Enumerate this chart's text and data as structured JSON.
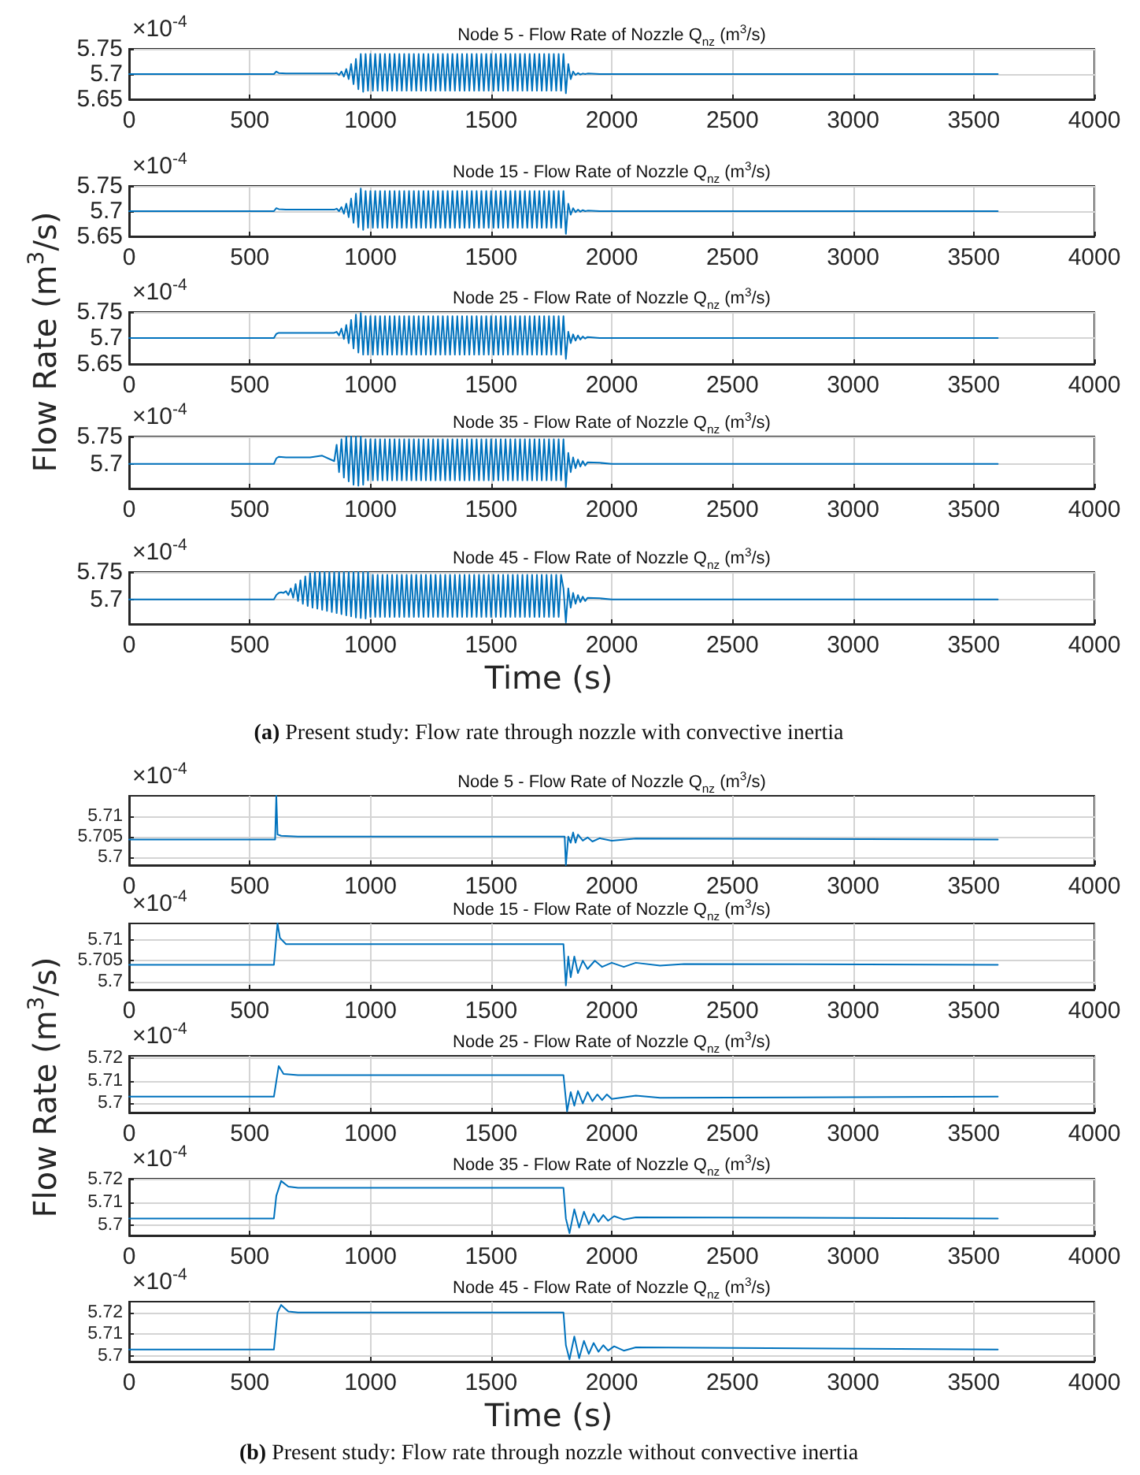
{
  "chart_data": [
    {
      "type": "line",
      "title": "Node 5 - Flow Rate of Nozzle Q$_{nz}$ (m$^{3}$/s)",
      "annotations": [
        "×10$^{-4}$"
      ],
      "color": "#0072bd",
      "grid": true,
      "xlim": [
        0,
        4000
      ],
      "xticks": [
        0,
        500,
        1000,
        1500,
        2000,
        2500,
        3000,
        3500,
        4000
      ],
      "ylim": [
        5.65,
        5.75
      ],
      "yticks": [
        5.65,
        5.7,
        5.75
      ],
      "x": [
        0,
        590,
        600,
        610,
        620,
        650,
        700,
        750,
        800,
        850,
        860,
        870,
        880,
        890,
        900,
        910,
        920,
        930,
        940,
        950,
        960,
        970,
        980,
        990,
        1000,
        1010,
        1020,
        1030,
        1040,
        1050,
        1060,
        1070,
        1080,
        1090,
        1100,
        1110,
        1120,
        1130,
        1140,
        1150,
        1160,
        1170,
        1180,
        1190,
        1200,
        1210,
        1220,
        1230,
        1240,
        1250,
        1260,
        1270,
        1280,
        1290,
        1300,
        1310,
        1320,
        1330,
        1340,
        1350,
        1360,
        1370,
        1380,
        1390,
        1400,
        1410,
        1420,
        1430,
        1440,
        1450,
        1460,
        1470,
        1480,
        1490,
        1500,
        1510,
        1520,
        1530,
        1540,
        1550,
        1560,
        1570,
        1580,
        1590,
        1600,
        1610,
        1620,
        1630,
        1640,
        1650,
        1660,
        1670,
        1680,
        1690,
        1700,
        1710,
        1720,
        1730,
        1740,
        1750,
        1760,
        1770,
        1780,
        1790,
        1800,
        1810,
        1820,
        1830,
        1840,
        1850,
        1860,
        1870,
        1880,
        1890,
        1900,
        1950,
        2000,
        2100,
        2200,
        2500,
        3000,
        3600
      ],
      "values": [
        5.7,
        5.7,
        5.7,
        5.705,
        5.702,
        5.701,
        5.701,
        5.701,
        5.701,
        5.701,
        5.702,
        5.698,
        5.705,
        5.695,
        5.71,
        5.69,
        5.72,
        5.68,
        5.73,
        5.67,
        5.74,
        5.665,
        5.74,
        5.667,
        5.74,
        5.667,
        5.74,
        5.667,
        5.74,
        5.667,
        5.74,
        5.667,
        5.74,
        5.667,
        5.74,
        5.667,
        5.74,
        5.667,
        5.74,
        5.667,
        5.74,
        5.667,
        5.74,
        5.667,
        5.74,
        5.667,
        5.74,
        5.667,
        5.74,
        5.667,
        5.74,
        5.667,
        5.74,
        5.667,
        5.74,
        5.667,
        5.74,
        5.667,
        5.74,
        5.667,
        5.74,
        5.667,
        5.74,
        5.667,
        5.74,
        5.667,
        5.74,
        5.667,
        5.74,
        5.667,
        5.74,
        5.667,
        5.74,
        5.667,
        5.74,
        5.667,
        5.74,
        5.667,
        5.74,
        5.667,
        5.74,
        5.667,
        5.74,
        5.667,
        5.74,
        5.667,
        5.74,
        5.667,
        5.74,
        5.667,
        5.74,
        5.667,
        5.74,
        5.667,
        5.74,
        5.667,
        5.74,
        5.667,
        5.74,
        5.667,
        5.74,
        5.667,
        5.74,
        5.667,
        5.74,
        5.662,
        5.72,
        5.69,
        5.705,
        5.698,
        5.702,
        5.699,
        5.701,
        5.7,
        5.701,
        5.7,
        5.7,
        5.7,
        5.7,
        5.7,
        5.7,
        5.7
      ]
    },
    {
      "type": "line",
      "title": "Node 15 - Flow Rate of Nozzle Q$_{nz}$ (m$^{3}$/s)",
      "annotations": [
        "×10$^{-4}$"
      ],
      "color": "#0072bd",
      "grid": true,
      "xlim": [
        0,
        4000
      ],
      "xticks": [
        0,
        500,
        1000,
        1500,
        2000,
        2500,
        3000,
        3500,
        4000
      ],
      "ylim": [
        5.65,
        5.75
      ],
      "yticks": [
        5.65,
        5.7,
        5.75
      ],
      "x": [
        0,
        590,
        600,
        610,
        620,
        650,
        700,
        750,
        800,
        850,
        860,
        870,
        880,
        890,
        900,
        910,
        920,
        930,
        940,
        950,
        960,
        970,
        980,
        990,
        1000,
        1010,
        1020,
        1030,
        1040,
        1050,
        1060,
        1070,
        1080,
        1090,
        1100,
        1110,
        1120,
        1130,
        1140,
        1150,
        1160,
        1170,
        1180,
        1190,
        1200,
        1210,
        1220,
        1230,
        1240,
        1250,
        1260,
        1270,
        1280,
        1290,
        1300,
        1310,
        1320,
        1330,
        1340,
        1350,
        1360,
        1370,
        1380,
        1390,
        1400,
        1410,
        1420,
        1430,
        1440,
        1450,
        1460,
        1470,
        1480,
        1490,
        1500,
        1510,
        1520,
        1530,
        1540,
        1550,
        1560,
        1570,
        1580,
        1590,
        1600,
        1610,
        1620,
        1630,
        1640,
        1650,
        1660,
        1670,
        1680,
        1690,
        1700,
        1710,
        1720,
        1730,
        1740,
        1750,
        1760,
        1770,
        1780,
        1790,
        1800,
        1810,
        1820,
        1830,
        1840,
        1850,
        1860,
        1870,
        1880,
        1890,
        1900,
        1950,
        2000,
        2100,
        2200,
        2500,
        3000,
        3600
      ],
      "values": [
        5.7,
        5.7,
        5.7,
        5.706,
        5.704,
        5.703,
        5.703,
        5.703,
        5.703,
        5.703,
        5.705,
        5.7,
        5.708,
        5.695,
        5.715,
        5.688,
        5.725,
        5.677,
        5.735,
        5.668,
        5.745,
        5.663,
        5.74,
        5.667,
        5.74,
        5.667,
        5.74,
        5.667,
        5.74,
        5.667,
        5.74,
        5.667,
        5.74,
        5.667,
        5.74,
        5.667,
        5.74,
        5.667,
        5.74,
        5.667,
        5.74,
        5.667,
        5.74,
        5.667,
        5.74,
        5.667,
        5.74,
        5.667,
        5.74,
        5.667,
        5.74,
        5.667,
        5.74,
        5.667,
        5.74,
        5.667,
        5.74,
        5.667,
        5.74,
        5.667,
        5.74,
        5.667,
        5.74,
        5.667,
        5.74,
        5.667,
        5.74,
        5.667,
        5.74,
        5.667,
        5.74,
        5.667,
        5.74,
        5.667,
        5.74,
        5.667,
        5.74,
        5.667,
        5.74,
        5.667,
        5.74,
        5.667,
        5.74,
        5.667,
        5.74,
        5.667,
        5.74,
        5.667,
        5.74,
        5.667,
        5.74,
        5.667,
        5.74,
        5.667,
        5.74,
        5.667,
        5.74,
        5.667,
        5.74,
        5.667,
        5.74,
        5.667,
        5.74,
        5.667,
        5.74,
        5.655,
        5.715,
        5.693,
        5.706,
        5.698,
        5.703,
        5.699,
        5.702,
        5.7,
        5.701,
        5.7,
        5.7,
        5.7,
        5.7,
        5.7,
        5.7,
        5.7
      ]
    },
    {
      "type": "line",
      "title": "Node 25 - Flow Rate of Nozzle Q$_{nz}$ (m$^{3}$/s)",
      "ylabel": "Flow Rate (m$^{3}$/s)",
      "annotations": [
        "×10$^{-4}$"
      ],
      "color": "#0072bd",
      "grid": true,
      "xlim": [
        0,
        4000
      ],
      "xticks": [
        0,
        500,
        1000,
        1500,
        2000,
        2500,
        3000,
        3500,
        4000
      ],
      "ylim": [
        5.65,
        5.75
      ],
      "yticks": [
        5.65,
        5.7,
        5.75
      ],
      "x": [
        0,
        590,
        600,
        610,
        620,
        650,
        700,
        750,
        800,
        850,
        860,
        870,
        880,
        890,
        900,
        910,
        920,
        930,
        940,
        950,
        960,
        970,
        980,
        990,
        1000,
        1010,
        1020,
        1030,
        1040,
        1050,
        1060,
        1070,
        1080,
        1090,
        1100,
        1110,
        1120,
        1130,
        1140,
        1150,
        1160,
        1170,
        1180,
        1190,
        1200,
        1210,
        1220,
        1230,
        1240,
        1250,
        1260,
        1270,
        1280,
        1290,
        1300,
        1310,
        1320,
        1330,
        1340,
        1350,
        1360,
        1370,
        1380,
        1390,
        1400,
        1410,
        1420,
        1430,
        1440,
        1450,
        1460,
        1470,
        1480,
        1490,
        1500,
        1510,
        1520,
        1530,
        1540,
        1550,
        1560,
        1570,
        1580,
        1590,
        1600,
        1610,
        1620,
        1630,
        1640,
        1650,
        1660,
        1670,
        1680,
        1690,
        1700,
        1710,
        1720,
        1730,
        1740,
        1750,
        1760,
        1770,
        1780,
        1790,
        1800,
        1810,
        1820,
        1830,
        1840,
        1850,
        1860,
        1870,
        1880,
        1890,
        1900,
        1950,
        2000,
        2100,
        2200,
        2500,
        3000,
        3600
      ],
      "values": [
        5.7,
        5.7,
        5.7,
        5.708,
        5.71,
        5.71,
        5.71,
        5.71,
        5.71,
        5.71,
        5.712,
        5.705,
        5.718,
        5.698,
        5.725,
        5.69,
        5.735,
        5.68,
        5.745,
        5.672,
        5.748,
        5.668,
        5.742,
        5.668,
        5.742,
        5.668,
        5.742,
        5.668,
        5.742,
        5.668,
        5.742,
        5.668,
        5.742,
        5.668,
        5.742,
        5.668,
        5.742,
        5.668,
        5.742,
        5.668,
        5.742,
        5.668,
        5.742,
        5.668,
        5.742,
        5.668,
        5.742,
        5.668,
        5.742,
        5.668,
        5.742,
        5.668,
        5.742,
        5.668,
        5.742,
        5.668,
        5.742,
        5.668,
        5.742,
        5.668,
        5.742,
        5.668,
        5.742,
        5.668,
        5.742,
        5.668,
        5.742,
        5.668,
        5.742,
        5.668,
        5.742,
        5.668,
        5.742,
        5.668,
        5.742,
        5.668,
        5.742,
        5.668,
        5.742,
        5.668,
        5.742,
        5.668,
        5.742,
        5.668,
        5.742,
        5.668,
        5.742,
        5.668,
        5.742,
        5.668,
        5.742,
        5.668,
        5.742,
        5.668,
        5.742,
        5.668,
        5.742,
        5.668,
        5.742,
        5.668,
        5.742,
        5.668,
        5.742,
        5.668,
        5.742,
        5.66,
        5.712,
        5.69,
        5.707,
        5.695,
        5.705,
        5.697,
        5.703,
        5.699,
        5.702,
        5.7,
        5.7,
        5.7,
        5.7,
        5.7,
        5.7,
        5.7
      ]
    },
    {
      "type": "line",
      "title": "Node 35 - Flow Rate of Nozzle Q$_{nz}$ (m$^{3}$/s)",
      "annotations": [
        "×10$^{-4}$"
      ],
      "color": "#0072bd",
      "grid": true,
      "xlim": [
        0,
        4000
      ],
      "xticks": [
        0,
        500,
        1000,
        1500,
        2000,
        2500,
        3000,
        3500,
        4000
      ],
      "ylim": [
        5.655,
        5.75
      ],
      "yticks": [
        5.7,
        5.75
      ],
      "x": [
        0,
        590,
        600,
        610,
        620,
        650,
        700,
        750,
        800,
        850,
        860,
        870,
        880,
        890,
        900,
        910,
        920,
        930,
        940,
        950,
        960,
        970,
        980,
        990,
        1000,
        1010,
        1020,
        1030,
        1040,
        1050,
        1060,
        1070,
        1080,
        1090,
        1100,
        1110,
        1120,
        1130,
        1140,
        1150,
        1160,
        1170,
        1180,
        1190,
        1200,
        1210,
        1220,
        1230,
        1240,
        1250,
        1260,
        1270,
        1280,
        1290,
        1300,
        1310,
        1320,
        1330,
        1340,
        1350,
        1360,
        1370,
        1380,
        1390,
        1400,
        1410,
        1420,
        1430,
        1440,
        1450,
        1460,
        1470,
        1480,
        1490,
        1500,
        1510,
        1520,
        1530,
        1540,
        1550,
        1560,
        1570,
        1580,
        1590,
        1600,
        1610,
        1620,
        1630,
        1640,
        1650,
        1660,
        1670,
        1680,
        1690,
        1700,
        1710,
        1720,
        1730,
        1740,
        1750,
        1760,
        1770,
        1780,
        1790,
        1800,
        1810,
        1820,
        1830,
        1840,
        1850,
        1860,
        1870,
        1880,
        1890,
        1900,
        1950,
        2000,
        2100,
        2200,
        2500,
        3000,
        3600
      ],
      "values": [
        5.7,
        5.7,
        5.7,
        5.71,
        5.713,
        5.712,
        5.712,
        5.712,
        5.715,
        5.705,
        5.735,
        5.685,
        5.745,
        5.675,
        5.75,
        5.668,
        5.75,
        5.662,
        5.75,
        5.66,
        5.75,
        5.662,
        5.745,
        5.67,
        5.745,
        5.67,
        5.745,
        5.67,
        5.745,
        5.67,
        5.745,
        5.67,
        5.745,
        5.67,
        5.745,
        5.67,
        5.745,
        5.67,
        5.745,
        5.67,
        5.745,
        5.67,
        5.745,
        5.67,
        5.745,
        5.67,
        5.745,
        5.67,
        5.745,
        5.67,
        5.745,
        5.67,
        5.745,
        5.67,
        5.745,
        5.67,
        5.745,
        5.67,
        5.745,
        5.67,
        5.745,
        5.67,
        5.745,
        5.67,
        5.745,
        5.67,
        5.745,
        5.67,
        5.745,
        5.67,
        5.745,
        5.67,
        5.745,
        5.67,
        5.745,
        5.67,
        5.745,
        5.67,
        5.745,
        5.67,
        5.745,
        5.67,
        5.745,
        5.67,
        5.745,
        5.67,
        5.745,
        5.67,
        5.745,
        5.67,
        5.745,
        5.67,
        5.745,
        5.67,
        5.745,
        5.67,
        5.745,
        5.67,
        5.745,
        5.67,
        5.745,
        5.67,
        5.745,
        5.67,
        5.745,
        5.658,
        5.72,
        5.685,
        5.712,
        5.692,
        5.708,
        5.695,
        5.705,
        5.697,
        5.703,
        5.702,
        5.7,
        5.7,
        5.7,
        5.7,
        5.7,
        5.7
      ]
    },
    {
      "type": "line",
      "title": "Node 45 - Flow Rate of Nozzle Q$_{nz}$ (m$^{3}$/s)",
      "xlabel": "Time (s)",
      "annotations": [
        "×10$^{-4}$",
        "(a) Present study: Flow rate through nozzle with convective inertia"
      ],
      "color": "#0072bd",
      "grid": true,
      "xlim": [
        0,
        4000
      ],
      "xticks": [
        0,
        500,
        1000,
        1500,
        2000,
        2500,
        3000,
        3500,
        4000
      ],
      "ylim": [
        5.655,
        5.75
      ],
      "yticks": [
        5.7,
        5.75
      ],
      "x": [
        0,
        590,
        600,
        610,
        620,
        630,
        640,
        650,
        660,
        670,
        680,
        690,
        700,
        710,
        720,
        730,
        740,
        750,
        760,
        770,
        780,
        790,
        800,
        810,
        820,
        830,
        840,
        850,
        860,
        870,
        880,
        890,
        900,
        910,
        920,
        930,
        940,
        950,
        960,
        970,
        980,
        990,
        1000,
        1010,
        1020,
        1030,
        1040,
        1050,
        1060,
        1070,
        1080,
        1090,
        1100,
        1110,
        1120,
        1130,
        1140,
        1150,
        1160,
        1170,
        1180,
        1190,
        1200,
        1210,
        1220,
        1230,
        1240,
        1250,
        1260,
        1270,
        1280,
        1290,
        1300,
        1310,
        1320,
        1330,
        1340,
        1350,
        1360,
        1370,
        1380,
        1390,
        1400,
        1410,
        1420,
        1430,
        1440,
        1450,
        1460,
        1470,
        1480,
        1490,
        1500,
        1510,
        1520,
        1530,
        1540,
        1550,
        1560,
        1570,
        1580,
        1590,
        1600,
        1610,
        1620,
        1630,
        1640,
        1650,
        1660,
        1670,
        1680,
        1690,
        1700,
        1710,
        1720,
        1730,
        1740,
        1750,
        1760,
        1770,
        1780,
        1790,
        1800,
        1810,
        1820,
        1830,
        1840,
        1850,
        1860,
        1870,
        1880,
        1890,
        1900,
        1950,
        2000,
        2100,
        2200,
        2500,
        3000,
        3600
      ],
      "values": [
        5.7,
        5.7,
        5.7,
        5.708,
        5.712,
        5.713,
        5.712,
        5.715,
        5.708,
        5.72,
        5.703,
        5.728,
        5.697,
        5.735,
        5.692,
        5.742,
        5.688,
        5.748,
        5.685,
        5.75,
        5.683,
        5.75,
        5.681,
        5.75,
        5.679,
        5.75,
        5.677,
        5.75,
        5.675,
        5.75,
        5.673,
        5.75,
        5.671,
        5.75,
        5.669,
        5.75,
        5.667,
        5.75,
        5.666,
        5.75,
        5.665,
        5.75,
        5.668,
        5.745,
        5.668,
        5.745,
        5.668,
        5.745,
        5.668,
        5.745,
        5.668,
        5.745,
        5.668,
        5.745,
        5.668,
        5.745,
        5.668,
        5.745,
        5.668,
        5.745,
        5.668,
        5.745,
        5.668,
        5.745,
        5.668,
        5.745,
        5.668,
        5.745,
        5.668,
        5.745,
        5.668,
        5.745,
        5.668,
        5.745,
        5.668,
        5.745,
        5.668,
        5.745,
        5.668,
        5.745,
        5.668,
        5.745,
        5.668,
        5.745,
        5.668,
        5.745,
        5.668,
        5.745,
        5.668,
        5.745,
        5.668,
        5.745,
        5.668,
        5.745,
        5.668,
        5.745,
        5.668,
        5.745,
        5.668,
        5.745,
        5.668,
        5.745,
        5.668,
        5.745,
        5.668,
        5.745,
        5.668,
        5.745,
        5.668,
        5.745,
        5.668,
        5.745,
        5.668,
        5.745,
        5.668,
        5.745,
        5.668,
        5.745,
        5.668,
        5.745,
        5.668,
        5.745,
        5.72,
        5.658,
        5.72,
        5.685,
        5.712,
        5.692,
        5.708,
        5.695,
        5.705,
        5.697,
        5.703,
        5.702,
        5.7,
        5.7,
        5.7,
        5.7,
        5.7,
        5.7
      ]
    },
    {
      "type": "line",
      "title": "Node 5 - Flow Rate of Nozzle Q$_{nz}$ (m$^{3}$/s)",
      "annotations": [
        "×10$^{-4}$"
      ],
      "color": "#0072bd",
      "grid": true,
      "xlim": [
        0,
        4000
      ],
      "xticks": [
        0,
        500,
        1000,
        1500,
        2000,
        2500,
        3000,
        3500,
        4000
      ],
      "ylim": [
        5.698,
        5.715
      ],
      "yticks": [
        5.7,
        5.705,
        5.71
      ],
      "x": [
        0,
        600,
        605,
        610,
        615,
        630,
        700,
        1800,
        1805,
        1810,
        1820,
        1830,
        1840,
        1850,
        1860,
        1880,
        1900,
        1920,
        1950,
        2000,
        2100,
        3600
      ],
      "values": [
        5.7043,
        5.7043,
        5.7043,
        5.715,
        5.7055,
        5.7052,
        5.705,
        5.705,
        5.705,
        5.698,
        5.705,
        5.7035,
        5.706,
        5.7035,
        5.7055,
        5.704,
        5.7048,
        5.7038,
        5.7046,
        5.704,
        5.7045,
        5.7043
      ]
    },
    {
      "type": "line",
      "title": "Node 15 - Flow Rate of Nozzle Q$_{nz}$ (m$^{3}$/s)",
      "annotations": [
        "×10$^{-4}$"
      ],
      "color": "#0072bd",
      "grid": true,
      "xlim": [
        0,
        4000
      ],
      "xticks": [
        0,
        500,
        1000,
        1500,
        2000,
        2500,
        3000,
        3500,
        4000
      ],
      "ylim": [
        5.698,
        5.714
      ],
      "yticks": [
        5.7,
        5.705,
        5.71
      ],
      "x": [
        0,
        600,
        615,
        625,
        650,
        700,
        1800,
        1810,
        1820,
        1830,
        1845,
        1860,
        1880,
        1900,
        1930,
        1960,
        2000,
        2050,
        2100,
        2200,
        2300,
        3600
      ],
      "values": [
        5.704,
        5.704,
        5.714,
        5.7105,
        5.709,
        5.709,
        5.709,
        5.699,
        5.706,
        5.701,
        5.706,
        5.702,
        5.705,
        5.703,
        5.705,
        5.7035,
        5.7045,
        5.7035,
        5.7045,
        5.7038,
        5.7042,
        5.704
      ]
    },
    {
      "type": "line",
      "title": "Node 25 - Flow Rate of Nozzle Q$_{nz}$ (m$^{3}$/s)",
      "ylabel": "Flow Rate (m$^{3}$/s)",
      "annotations": [
        "×10$^{-4}$"
      ],
      "color": "#0072bd",
      "grid": true,
      "xlim": [
        0,
        4000
      ],
      "xticks": [
        0,
        500,
        1000,
        1500,
        2000,
        2500,
        3000,
        3500,
        4000
      ],
      "ylim": [
        5.696,
        5.721
      ],
      "yticks": [
        5.7,
        5.71,
        5.72
      ],
      "x": [
        0,
        600,
        620,
        640,
        700,
        1800,
        1815,
        1830,
        1845,
        1860,
        1880,
        1900,
        1920,
        1940,
        1960,
        1980,
        2000,
        2100,
        2200,
        3600
      ],
      "values": [
        5.703,
        5.703,
        5.7165,
        5.713,
        5.7125,
        5.7125,
        5.6965,
        5.705,
        5.699,
        5.7055,
        5.7,
        5.705,
        5.701,
        5.704,
        5.7015,
        5.704,
        5.702,
        5.7035,
        5.7025,
        5.703
      ]
    },
    {
      "type": "line",
      "title": "Node 35 - Flow Rate of Nozzle Q$_{nz}$ (m$^{3}$/s)",
      "annotations": [
        "×10$^{-4}$"
      ],
      "color": "#0072bd",
      "grid": true,
      "xlim": [
        0,
        4000
      ],
      "xticks": [
        0,
        500,
        1000,
        1500,
        2000,
        2500,
        3000,
        3500,
        4000
      ],
      "ylim": [
        5.6955,
        5.7205
      ],
      "yticks": [
        5.7,
        5.71,
        5.72
      ],
      "x": [
        0,
        600,
        610,
        630,
        660,
        700,
        1800,
        1810,
        1825,
        1845,
        1865,
        1885,
        1905,
        1925,
        1945,
        1965,
        1985,
        2010,
        2050,
        2100,
        3600
      ],
      "values": [
        5.703,
        5.703,
        5.713,
        5.7195,
        5.717,
        5.7165,
        5.7165,
        5.703,
        5.6965,
        5.707,
        5.699,
        5.706,
        5.7005,
        5.705,
        5.7015,
        5.7045,
        5.702,
        5.704,
        5.7025,
        5.7035,
        5.703
      ]
    },
    {
      "type": "line",
      "title": "Node 45 - Flow Rate of Nozzle Q$_{nz}$ (m$^{3}$/s)",
      "xlabel": "Time (s)",
      "annotations": [
        "×10$^{-4}$",
        "(b) Present study: Flow rate through nozzle without convective inertia"
      ],
      "color": "#0072bd",
      "grid": true,
      "xlim": [
        0,
        4000
      ],
      "xticks": [
        0,
        500,
        1000,
        1500,
        2000,
        2500,
        3000,
        3500,
        4000
      ],
      "ylim": [
        5.6975,
        5.725
      ],
      "yticks": [
        5.7,
        5.71,
        5.72
      ],
      "x": [
        0,
        600,
        615,
        630,
        660,
        700,
        1800,
        1810,
        1825,
        1845,
        1865,
        1885,
        1905,
        1925,
        1945,
        1965,
        1985,
        2010,
        2050,
        2100,
        3600
      ],
      "values": [
        5.703,
        5.703,
        5.72,
        5.7235,
        5.7205,
        5.72,
        5.72,
        5.705,
        5.6985,
        5.709,
        5.699,
        5.707,
        5.701,
        5.706,
        5.702,
        5.705,
        5.7025,
        5.7045,
        5.7025,
        5.704,
        5.703
      ]
    }
  ]
}
